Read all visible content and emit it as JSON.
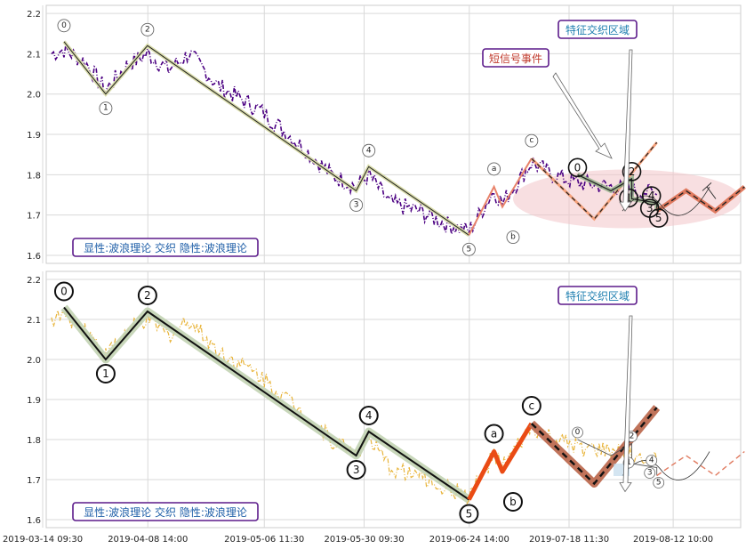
{
  "chart_data": {
    "type": "line",
    "x_ticks": [
      "2019-03-14 09:30",
      "2019-04-08 14:00",
      "2019-05-06 11:30",
      "2019-05-30 09:30",
      "2019-06-24 14:00",
      "2019-07-18 11:30",
      "2019-08-12 10:00"
    ],
    "grid": true,
    "panels": [
      {
        "ylim": [
          1.58,
          2.22
        ],
        "y_ticks": [
          "1.6",
          "1.7",
          "1.8",
          "1.9",
          "2.0",
          "2.1",
          "2.2"
        ],
        "legend_text": "显性:波浪理论 交织 隐性:波浪理论",
        "annotations": [
          "特征交织区域",
          "短信号事件"
        ],
        "price_color": "#4b0082",
        "wave_labels": [
          "0",
          "1",
          "2",
          "3",
          "4",
          "5",
          "a",
          "b",
          "c"
        ],
        "forecast_labels": [
          "0",
          "1",
          "2",
          "3",
          "4",
          "5"
        ]
      },
      {
        "ylim": [
          1.58,
          2.22
        ],
        "y_ticks": [
          "1.6",
          "1.7",
          "1.8",
          "1.9",
          "2.0",
          "2.1",
          "2.2"
        ],
        "legend_text": "显性:波浪理论 交织 隐性:波浪理论",
        "annotations": [
          "特征交织区域"
        ],
        "price_color": "#e8b43a",
        "wave_labels": [
          "0",
          "1",
          "2",
          "3",
          "4",
          "5",
          "a",
          "b",
          "c"
        ],
        "forecast_labels": [
          "0",
          "1",
          "2",
          "3",
          "4",
          "5"
        ]
      }
    ],
    "impulse_wave": {
      "x": [
        "2019-03-19",
        "2019-03-29",
        "2019-04-08",
        "2019-05-28",
        "2019-05-31",
        "2019-06-24"
      ],
      "y": [
        2.13,
        2.0,
        2.12,
        1.76,
        1.82,
        1.65
      ]
    },
    "correction_wave": {
      "x": [
        "2019-06-24",
        "2019-06-30",
        "2019-07-02",
        "2019-07-09"
      ],
      "y": [
        1.65,
        1.77,
        1.72,
        1.84
      ]
    },
    "projection": {
      "x": [
        "2019-07-09",
        "2019-07-24",
        "2019-08-08"
      ],
      "y": [
        1.84,
        1.69,
        1.88
      ]
    },
    "forecast_wave": {
      "x": [
        "2019-07-20",
        "2019-07-28",
        "2019-08-02",
        "2019-08-02",
        "2019-08-08",
        "2019-08-08"
      ],
      "y": [
        1.8,
        1.76,
        1.79,
        1.74,
        1.73,
        1.71
      ]
    },
    "future_path": {
      "x": [
        "2019-08-08",
        "2019-08-15",
        "2019-08-22",
        "2019-08-29"
      ],
      "y": [
        1.71,
        1.76,
        1.71,
        1.77
      ]
    }
  }
}
